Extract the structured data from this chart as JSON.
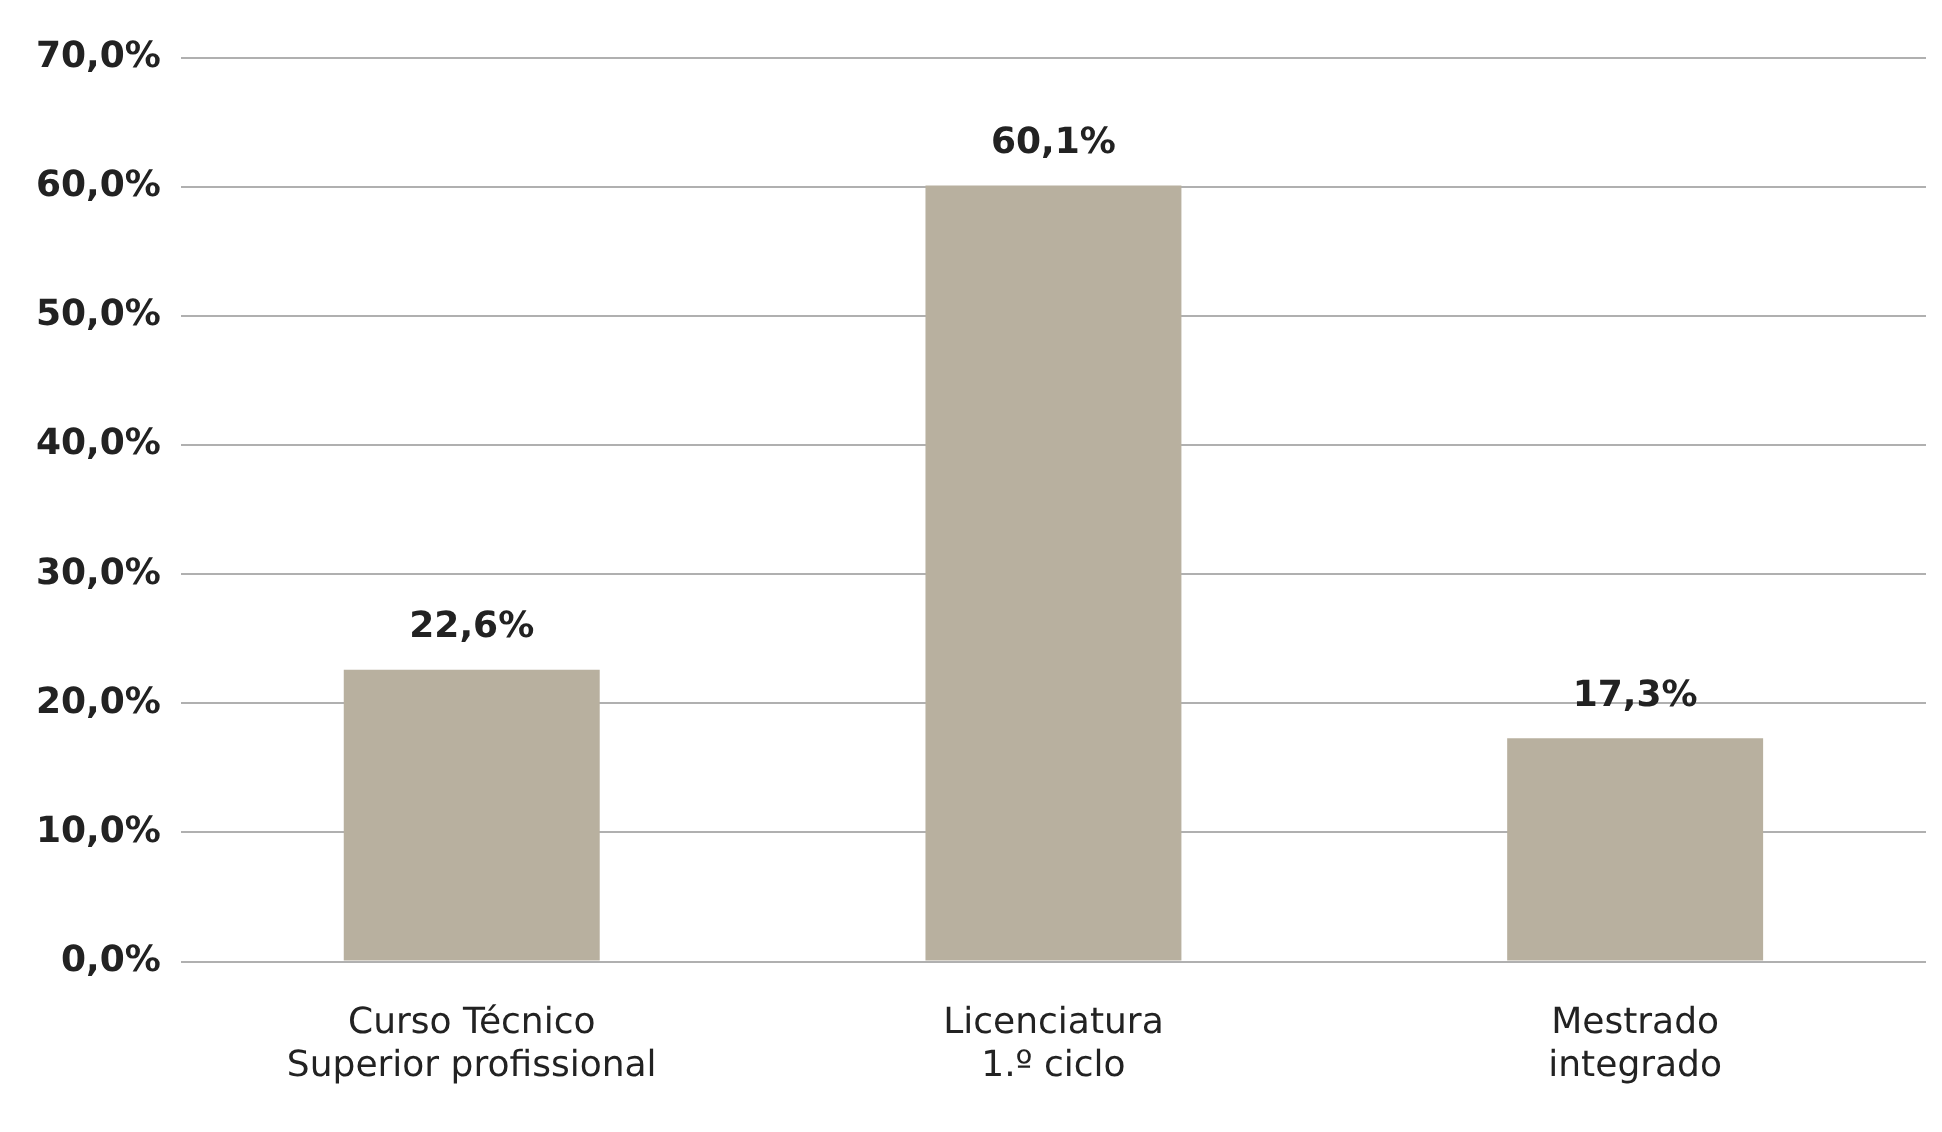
{
  "chart_data": {
    "type": "bar",
    "categories": [
      "Curso Técnico\nSuperior profissional",
      "Licenciatura\n1.º ciclo",
      "Mestrado\nintegrado"
    ],
    "values": [
      22.6,
      60.1,
      17.3
    ],
    "color": "#b8b09f",
    "value_labels": [
      "22,6%",
      "60,1%",
      "17,3%"
    ],
    "ylim": [
      0,
      70
    ],
    "yticks": [
      {
        "value": 0,
        "label": "0,0%"
      },
      {
        "value": 10,
        "label": "10,0%"
      },
      {
        "value": 20,
        "label": "20,0%"
      },
      {
        "value": 30,
        "label": "30,0%"
      },
      {
        "value": 40,
        "label": "40,0%"
      },
      {
        "value": 50,
        "label": "50,0%"
      },
      {
        "value": 60,
        "label": "60,0%"
      },
      {
        "value": 70,
        "label": "70,0%"
      }
    ],
    "grid": "y",
    "legend": false
  }
}
